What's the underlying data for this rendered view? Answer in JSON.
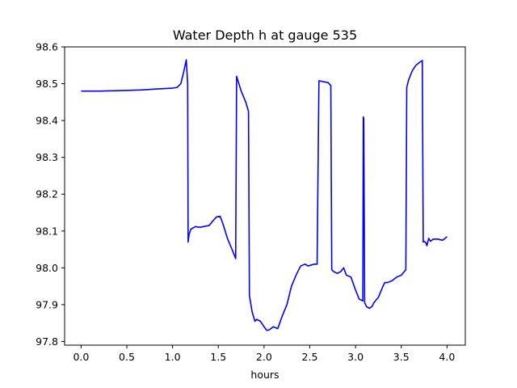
{
  "chart_data": {
    "type": "line",
    "title": "Water Depth h at gauge 535",
    "xlabel": "hours",
    "ylabel": "",
    "xlim": [
      -0.18,
      4.2
    ],
    "ylim": [
      97.79,
      98.6
    ],
    "xticks": [
      0.0,
      0.5,
      1.0,
      1.5,
      2.0,
      2.5,
      3.0,
      3.5,
      4.0
    ],
    "xtick_labels": [
      "0.0",
      "0.5",
      "1.0",
      "1.5",
      "2.0",
      "2.5",
      "3.0",
      "3.5",
      "4.0"
    ],
    "yticks": [
      97.8,
      97.9,
      98.0,
      98.1,
      98.2,
      98.3,
      98.4,
      98.5,
      98.6
    ],
    "ytick_labels": [
      "97.8",
      "97.9",
      "98.0",
      "98.1",
      "98.2",
      "98.3",
      "98.4",
      "98.5",
      "98.6"
    ],
    "grid": false,
    "series": [
      {
        "color": "#0000ff",
        "x": [
          0.0,
          0.2,
          0.4,
          0.65,
          0.85,
          1.0,
          1.05,
          1.09,
          1.12,
          1.15,
          1.165,
          1.17,
          1.18,
          1.2,
          1.25,
          1.3,
          1.4,
          1.45,
          1.48,
          1.52,
          1.55,
          1.6,
          1.65,
          1.69,
          1.7,
          1.75,
          1.8,
          1.83,
          1.84,
          1.87,
          1.9,
          1.92,
          1.96,
          2.0,
          2.03,
          2.06,
          2.1,
          2.15,
          2.2,
          2.25,
          2.3,
          2.35,
          2.4,
          2.45,
          2.48,
          2.52,
          2.55,
          2.58,
          2.6,
          2.62,
          2.66,
          2.7,
          2.73,
          2.74,
          2.76,
          2.8,
          2.84,
          2.87,
          2.9,
          2.95,
          3.0,
          3.04,
          3.08,
          3.085,
          3.09,
          3.1,
          3.12,
          3.15,
          3.18,
          3.2,
          3.25,
          3.3,
          3.32,
          3.35,
          3.4,
          3.45,
          3.5,
          3.55,
          3.56,
          3.58,
          3.62,
          3.66,
          3.7,
          3.73,
          3.74,
          3.75,
          3.77,
          3.78,
          3.8,
          3.82,
          3.85,
          3.9,
          3.95,
          3.98,
          4.0
        ],
        "y": [
          98.48,
          98.48,
          98.481,
          98.483,
          98.486,
          98.488,
          98.49,
          98.5,
          98.53,
          98.565,
          98.5,
          98.07,
          98.09,
          98.105,
          98.112,
          98.11,
          98.115,
          98.13,
          98.138,
          98.14,
          98.12,
          98.08,
          98.05,
          98.025,
          98.52,
          98.48,
          98.45,
          98.425,
          97.925,
          97.88,
          97.855,
          97.86,
          97.855,
          97.84,
          97.83,
          97.832,
          97.84,
          97.835,
          97.87,
          97.9,
          97.95,
          97.98,
          98.005,
          98.01,
          98.005,
          98.008,
          98.01,
          98.01,
          98.508,
          98.507,
          98.505,
          98.503,
          98.495,
          97.995,
          97.99,
          97.985,
          97.99,
          98.0,
          97.98,
          97.975,
          97.94,
          97.915,
          97.91,
          98.41,
          98.405,
          97.905,
          97.895,
          97.89,
          97.895,
          97.905,
          97.92,
          97.95,
          97.96,
          97.96,
          97.965,
          97.975,
          97.98,
          97.995,
          98.49,
          98.51,
          98.535,
          98.55,
          98.558,
          98.563,
          98.07,
          98.072,
          98.068,
          98.06,
          98.08,
          98.072,
          98.078,
          98.078,
          98.075,
          98.08,
          98.085
        ]
      }
    ]
  }
}
